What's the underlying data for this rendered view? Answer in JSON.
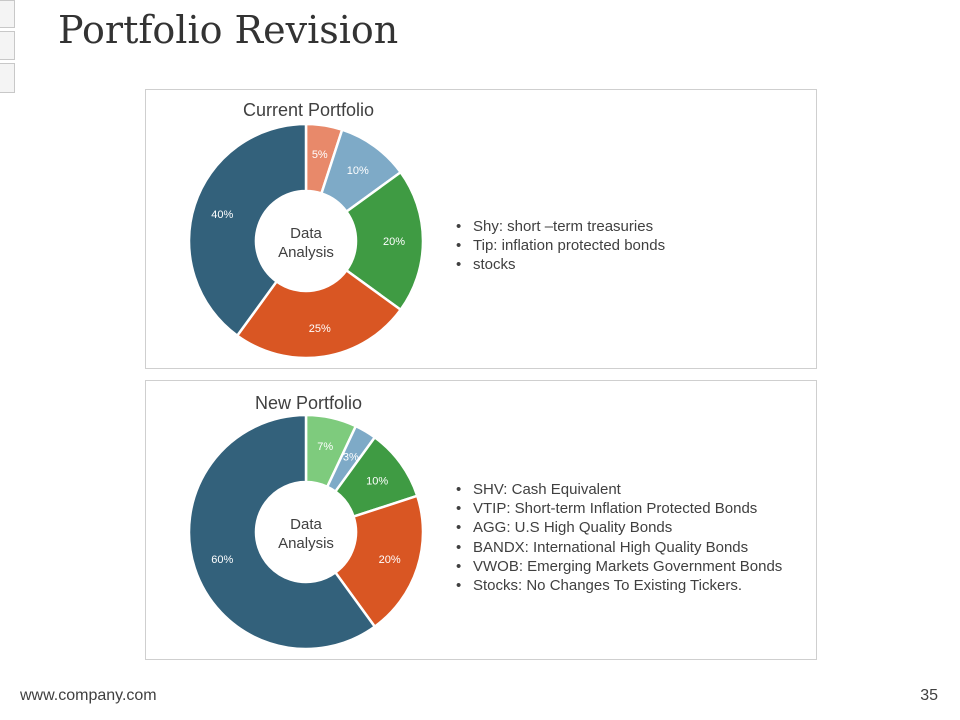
{
  "slide": {
    "title": "Portfolio Revision",
    "footer_url": "www.company.com",
    "page_number": "35"
  },
  "colors": {
    "navy": "#33617b",
    "orange": "#d95623",
    "green": "#3f9b43",
    "light_blue": "#7eaac7",
    "salmon": "#e8896a",
    "light_green": "#7ecb7d"
  },
  "chart_data": [
    {
      "type": "donut",
      "title": "Current Portfolio",
      "center_label": [
        "Data",
        "Analysis"
      ],
      "slices": [
        {
          "label": "5%",
          "value": 5,
          "color": "#e8896a"
        },
        {
          "label": "10%",
          "value": 10,
          "color": "#7eaac7"
        },
        {
          "label": "20%",
          "value": 20,
          "color": "#3f9b43"
        },
        {
          "label": "25%",
          "value": 25,
          "color": "#d95623"
        },
        {
          "label": "40%",
          "value": 40,
          "color": "#33617b"
        }
      ],
      "legend": [
        "Shy: short –term treasuries",
        "Tip: inflation protected bonds",
        "stocks"
      ]
    },
    {
      "type": "donut",
      "title": "New Portfolio",
      "center_label": [
        "Data",
        "Analysis"
      ],
      "slices": [
        {
          "label": "7%",
          "value": 7,
          "color": "#7ecb7d"
        },
        {
          "label": "3%",
          "value": 3,
          "color": "#7eaac7"
        },
        {
          "label": "10%",
          "value": 10,
          "color": "#3f9b43"
        },
        {
          "label": "20%",
          "value": 20,
          "color": "#d95623"
        },
        {
          "label": "60%",
          "value": 60,
          "color": "#33617b"
        }
      ],
      "legend": [
        "SHV: Cash Equivalent",
        "VTIP: Short-term Inflation Protected Bonds",
        "AGG: U.S High Quality Bonds",
        "BANDX: International High Quality Bonds",
        "VWOB: Emerging Markets Government Bonds",
        "Stocks: No Changes To Existing Tickers."
      ]
    }
  ]
}
